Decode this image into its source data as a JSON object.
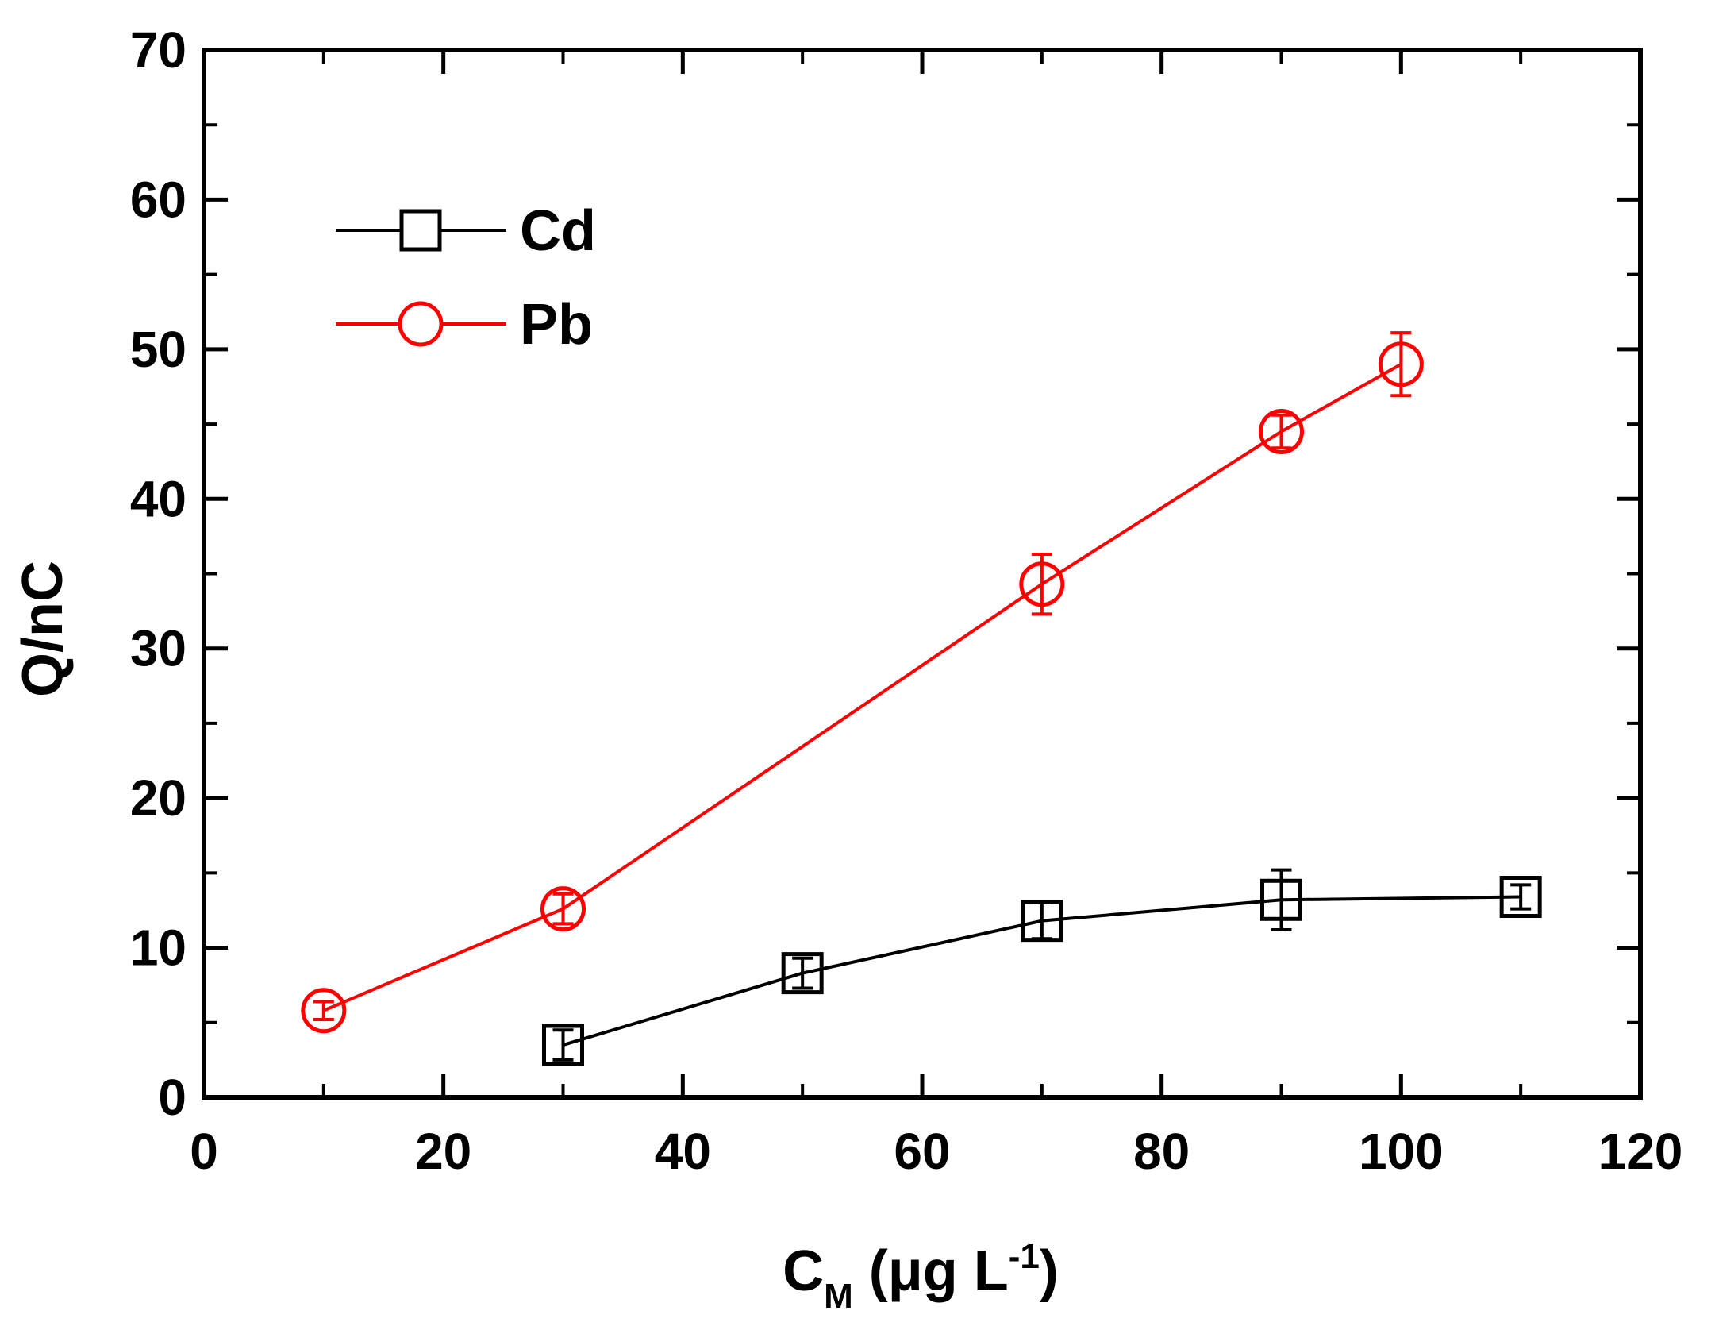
{
  "chart_data": {
    "type": "line",
    "title": "",
    "xlabel": {
      "main": "C",
      "sub": "M",
      "rest": " (μg L",
      "sup": "-1",
      "close": ")"
    },
    "ylabel": "Q/nC",
    "xlim": [
      0,
      120
    ],
    "ylim": [
      0,
      70
    ],
    "xticks": [
      0,
      20,
      40,
      60,
      80,
      100,
      120
    ],
    "yticks": [
      0,
      10,
      20,
      30,
      40,
      50,
      60,
      70
    ],
    "grid": false,
    "legend_position": "top-left",
    "series": [
      {
        "name": "Cd",
        "color": "#000000",
        "marker": "square",
        "x": [
          30,
          50,
          70,
          90,
          110
        ],
        "y": [
          3.5,
          8.3,
          11.8,
          13.2,
          13.4
        ],
        "err": [
          1.0,
          1.0,
          1.2,
          2.0,
          0.8
        ]
      },
      {
        "name": "Pb",
        "color": "#ff0000",
        "marker": "circle",
        "x": [
          10,
          30,
          70,
          90,
          100
        ],
        "y": [
          5.8,
          12.6,
          34.3,
          44.5,
          49.0
        ],
        "err": [
          0.6,
          1.0,
          2.0,
          1.1,
          2.1
        ]
      }
    ]
  }
}
